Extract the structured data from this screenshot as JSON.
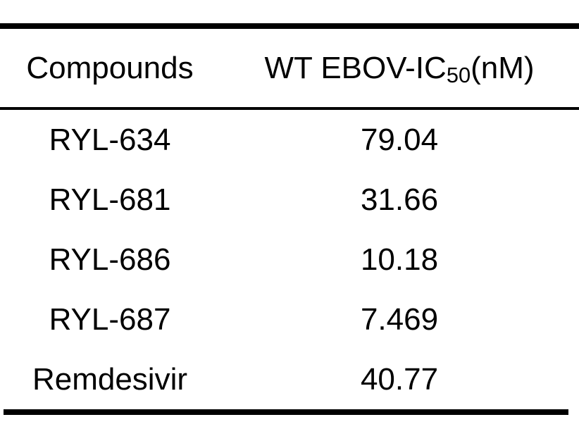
{
  "figure": {
    "header": {
      "col1": "Compounds",
      "col2_prefix": "WT EBOV-IC",
      "col2_sub": "50",
      "col2_suffix": "(nM)"
    },
    "rows": [
      {
        "compound": "RYL-634",
        "value": "79.04"
      },
      {
        "compound": "RYL-681",
        "value": "31.66"
      },
      {
        "compound": "RYL-686",
        "value": "10.18"
      },
      {
        "compound": "RYL-687",
        "value": "7.469"
      },
      {
        "compound": "Remdesivir",
        "value": "40.77"
      }
    ]
  },
  "chart_data": {
    "type": "table",
    "title": "",
    "columns": [
      "Compounds",
      "WT EBOV-IC50(nM)"
    ],
    "rows": [
      [
        "RYL-634",
        79.04
      ],
      [
        "RYL-681",
        31.66
      ],
      [
        "RYL-686",
        10.18
      ],
      [
        "RYL-687",
        7.469
      ],
      [
        "Remdesivir",
        40.77
      ]
    ],
    "notes": "Two-column scientific table; thick horizontal rules at top and bottom, thin rule below header; '50' rendered as subscript in second column header"
  },
  "colors": {
    "background": "#ffffff",
    "text": "#000000",
    "rule": "#000000"
  }
}
